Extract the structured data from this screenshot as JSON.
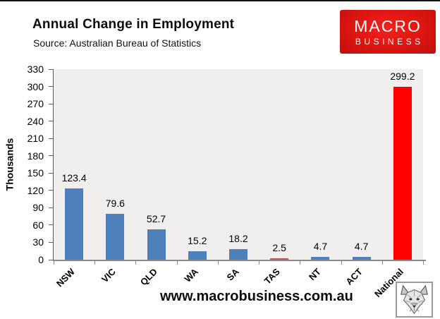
{
  "header": {
    "title": "Annual Change in Employment",
    "source": "Source: Australian Bureau of Statistics"
  },
  "logo": {
    "line1": "MACRO",
    "line2": "BUSINESS",
    "bg_color": "#dd1511",
    "text_color": "#ffffff"
  },
  "chart_data": {
    "type": "bar",
    "title": "Annual Change in Employment",
    "source_note": "Source: Australian Bureau of Statistics",
    "ylabel": "Thousands",
    "xlabel": "",
    "categories": [
      "NSW",
      "VIC",
      "QLD",
      "WA",
      "SA",
      "TAS",
      "NT",
      "ACT",
      "National"
    ],
    "values": [
      123.4,
      79.6,
      52.7,
      15.2,
      18.2,
      2.5,
      4.7,
      4.7,
      299.2
    ],
    "value_labels": [
      "123.4",
      "79.6",
      "52.7",
      "15.2",
      "18.2",
      "2.5",
      "4.7",
      "4.7",
      "299.2"
    ],
    "bar_colors": [
      "#4d80bb",
      "#4d80bb",
      "#4d80bb",
      "#4d80bb",
      "#4d80bb",
      "#c0504d",
      "#4d80bb",
      "#4d80bb",
      "#ff0000"
    ],
    "ylim": [
      0,
      330
    ],
    "ytick_step": 30,
    "grid": false,
    "legend": "none",
    "plot_bg": "#f0efee",
    "accent_blue": "#4d80bb",
    "accent_red": "#ff0000",
    "accent_muted_red": "#c0504d"
  },
  "footer": {
    "website": "www.macrobusiness.com.au"
  },
  "icons": {
    "wolf_logo": "wolf-head-logo"
  }
}
